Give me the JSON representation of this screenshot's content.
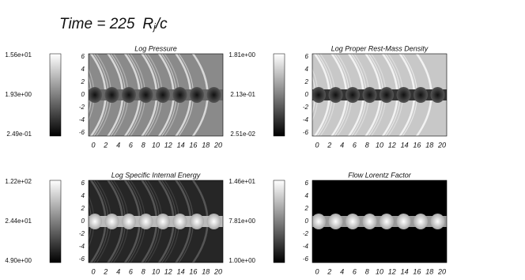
{
  "title": {
    "text": "Time = 225",
    "symbol": "R",
    "subscript": "j",
    "suffix": "/c"
  },
  "panels": [
    {
      "title": "Log Pressure",
      "colorbar_labels": [
        "1.56e+01",
        "1.93e+00",
        "2.49e-01"
      ],
      "yticks": [
        6,
        4,
        2,
        0,
        -2,
        -4,
        -6
      ],
      "xticks": [
        0,
        2,
        4,
        6,
        8,
        10,
        12,
        14,
        16,
        18,
        20
      ]
    },
    {
      "title": "Log Proper Rest-Mass Density",
      "colorbar_labels": [
        "1.81e+00",
        "2.13e-01",
        "2.51e-02"
      ],
      "yticks": [
        6,
        4,
        2,
        0,
        -2,
        -4,
        -6
      ],
      "xticks": [
        0,
        2,
        4,
        6,
        8,
        10,
        12,
        14,
        16,
        18,
        20
      ]
    },
    {
      "title": "Log Specific Internal Energy",
      "colorbar_labels": [
        "1.22e+02",
        "2.44e+01",
        "4.90e+00"
      ],
      "yticks": [
        6,
        4,
        2,
        0,
        -2,
        -4,
        -6
      ],
      "xticks": [
        0,
        2,
        4,
        6,
        8,
        10,
        12,
        14,
        16,
        18,
        20
      ]
    },
    {
      "title": "Flow Lorentz Factor",
      "colorbar_labels": [
        "1.46e+01",
        "7.81e+00",
        "1.00e+00"
      ],
      "yticks": [
        6,
        4,
        2,
        0,
        -2,
        -4,
        -6
      ],
      "xticks": [
        0,
        2,
        4,
        6,
        8,
        10,
        12,
        14,
        16,
        18,
        20
      ]
    }
  ]
}
